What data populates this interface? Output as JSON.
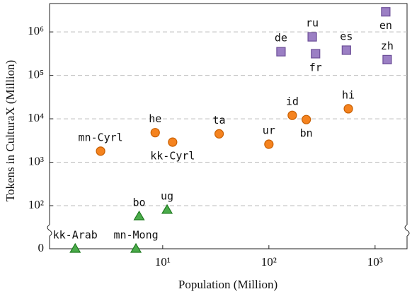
{
  "chart_data": {
    "type": "scatter",
    "x_label": "Population (Million)",
    "y_label": "Tokens in CulturaX (Million)",
    "x_log": true,
    "y_log": true,
    "y_axis_break": true,
    "grid": true,
    "xlim": [
      0.86,
      2000
    ],
    "ylim": [
      0,
      4500000
    ],
    "xticks": [
      {
        "value": 10,
        "label": "10¹"
      },
      {
        "value": 100,
        "label": "10²"
      },
      {
        "value": 1000,
        "label": "10³"
      }
    ],
    "yticks": [
      0,
      {
        "value": 100,
        "label": "10²"
      },
      {
        "value": 1000,
        "label": "10³"
      },
      {
        "value": 10000,
        "label": "10⁴"
      },
      {
        "value": 100000,
        "label": "10⁵"
      },
      {
        "value": 1000000,
        "label": "10⁶"
      }
    ],
    "series": [
      {
        "color": "#f5831f",
        "marker": "circle",
        "labels": [
          "mn-Cyrl",
          "he",
          "kk-Cyrl",
          "ta",
          "ur",
          "id",
          "bn",
          "hi"
        ],
        "x": [
          2.6,
          8.5,
          12.4,
          34,
          100,
          166,
          225,
          560
        ],
        "values": [
          1800,
          4800,
          2900,
          4500,
          2600,
          12000,
          9600,
          17000
        ]
      },
      {
        "color": "#9b7fc4",
        "marker": "square",
        "labels": [
          "de",
          "ru",
          "fr",
          "es",
          "en",
          "zh"
        ],
        "x": [
          130,
          256,
          275,
          537,
          1260,
          1300
        ],
        "values": [
          350000,
          770000,
          315000,
          380000,
          2900000,
          230000
        ]
      },
      {
        "color": "#4aab4a",
        "marker": "triangle",
        "labels": [
          "kk-Arab",
          "mn-Mong",
          "bo",
          "ug"
        ],
        "x": [
          1.5,
          5.6,
          6,
          11
        ],
        "values": [
          0,
          0,
          57,
          80
        ]
      }
    ]
  }
}
